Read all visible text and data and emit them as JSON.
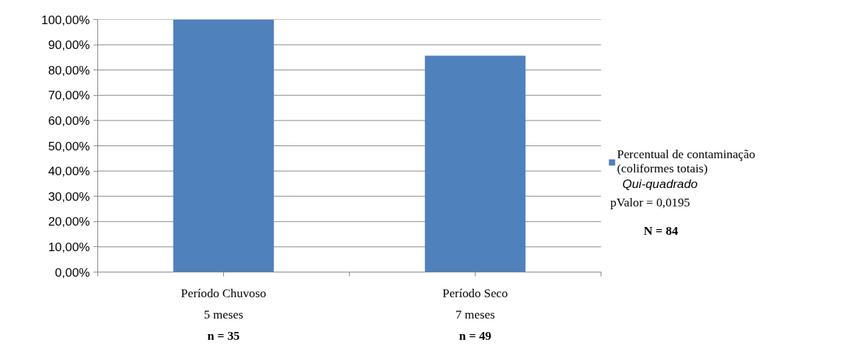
{
  "chart_data": {
    "type": "bar",
    "categories": [
      "Período Chuvoso\n5 meses\nn = 35",
      "Período Seco\n7 meses\nn = 49"
    ],
    "series": [
      {
        "name": "Percentual de contaminação (coliformes totais)",
        "color": "#4f81bd",
        "values": [
          100,
          85.7
        ]
      }
    ],
    "ylim": [
      0,
      100
    ],
    "yticks": [
      {
        "value": 0,
        "label": "0,00%"
      },
      {
        "value": 10,
        "label": "10,00%"
      },
      {
        "value": 20,
        "label": "20,00%"
      },
      {
        "value": 30,
        "label": "30,00%"
      },
      {
        "value": 40,
        "label": "40,00%"
      },
      {
        "value": 50,
        "label": "50,00%"
      },
      {
        "value": 60,
        "label": "60,00%"
      },
      {
        "value": 70,
        "label": "70,00%"
      },
      {
        "value": 80,
        "label": "80,00%"
      },
      {
        "value": 90,
        "label": "90,00%"
      },
      {
        "value": 100,
        "label": "100,00%"
      }
    ],
    "grid": "y",
    "legend": "right",
    "annotations": [
      "Qui-quadrado",
      "pValor = 0,0195",
      "N = 84"
    ]
  }
}
